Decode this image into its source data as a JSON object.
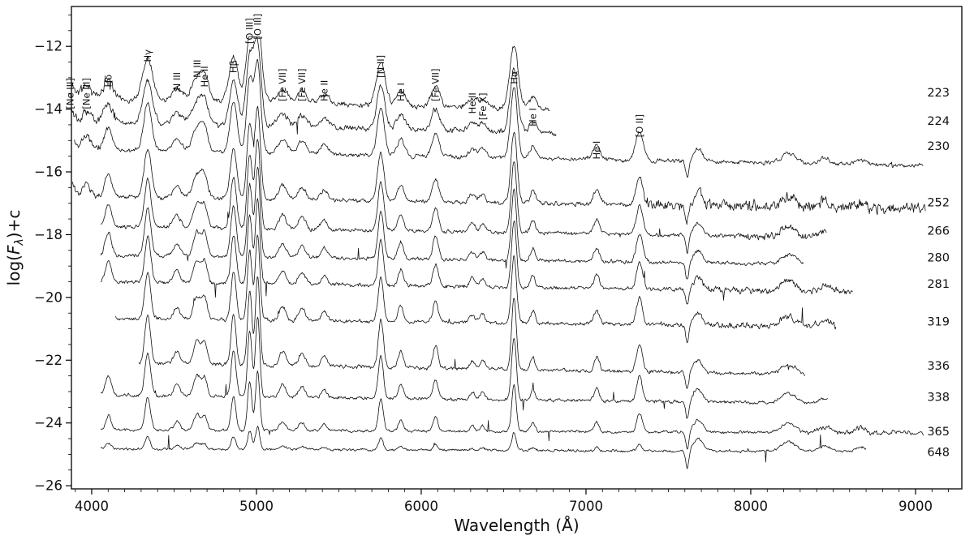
{
  "chart_data": {
    "type": "line",
    "title": "",
    "xlabel": "Wavelength (Å)",
    "ylabel": "log(Fλ)+c",
    "ylabel_parts": {
      "prefix": "log(",
      "f": "F",
      "sub": "λ",
      "suffix": ")+c"
    },
    "xlim": [
      3877,
      9281
    ],
    "ylim": [
      -26.1,
      -10.73
    ],
    "xticks": [
      4000,
      5000,
      6000,
      7000,
      8000,
      9000
    ],
    "yticks": [
      -26,
      -24,
      -22,
      -20,
      -18,
      -16,
      -14,
      -12
    ],
    "grid": false,
    "line_color": "#111111",
    "spectra": [
      {
        "label": "223",
        "offset": -13.85,
        "label_y": -13.6,
        "xstart": 3880,
        "xend": 6780,
        "line_scale": 0.8,
        "width_scale": 1.7,
        "noise": 0.1,
        "slope": -0.12,
        "seed": 11,
        "blue_noise_below": 4150,
        "blue_noise_mult": 1.8
      },
      {
        "label": "224",
        "offset": -14.6,
        "label_y": -14.5,
        "xstart": 3880,
        "xend": 6820,
        "line_scale": 0.8,
        "width_scale": 1.55,
        "noise": 0.1,
        "slope": -0.12,
        "seed": 22,
        "blue_noise_below": 4150,
        "blue_noise_mult": 1.8
      },
      {
        "label": "230",
        "offset": -15.45,
        "label_y": -15.3,
        "xstart": 3895,
        "xend": 9050,
        "line_scale": 0.9,
        "width_scale": 1.35,
        "noise": 0.075,
        "slope": -0.1,
        "seed": 33,
        "blue_noise_below": 4100,
        "blue_noise_mult": 1.6
      },
      {
        "label": "252",
        "offset": -16.9,
        "label_y": -17.1,
        "xstart": 3880,
        "xend": 9060,
        "line_scale": 0.9,
        "width_scale": 1.2,
        "noise": 0.08,
        "slope": -0.08,
        "seed": 44,
        "blue_noise_below": 4100,
        "blue_noise_mult": 1.6,
        "red_noise_from": 7350,
        "red_noise_mult": 2.6
      },
      {
        "label": "266",
        "offset": -17.85,
        "label_y": -18.0,
        "xstart": 4055,
        "xend": 8460,
        "line_scale": 0.9,
        "width_scale": 1.1,
        "noise": 0.07,
        "slope": -0.08,
        "seed": 55,
        "red_noise_from": 7900,
        "red_noise_mult": 1.8
      },
      {
        "label": "280",
        "offset": -18.75,
        "label_y": -18.85,
        "xstart": 4055,
        "xend": 8320,
        "line_scale": 0.9,
        "width_scale": 1.05,
        "noise": 0.065,
        "slope": -0.07,
        "seed": 66
      },
      {
        "label": "281",
        "offset": -19.6,
        "label_y": -19.7,
        "xstart": 4055,
        "xend": 8620,
        "line_scale": 0.85,
        "width_scale": 1.0,
        "noise": 0.07,
        "slope": -0.07,
        "seed": 77,
        "red_noise_from": 7650,
        "red_noise_mult": 1.7
      },
      {
        "label": "319",
        "offset": -20.75,
        "label_y": -20.9,
        "xstart": 4145,
        "xend": 8520,
        "line_scale": 0.85,
        "width_scale": 1.0,
        "noise": 0.07,
        "slope": -0.06,
        "seed": 88,
        "red_noise_from": 7700,
        "red_noise_mult": 1.6
      },
      {
        "label": "336",
        "offset": -22.2,
        "label_y": -22.3,
        "xstart": 4285,
        "xend": 8330,
        "line_scale": 0.9,
        "width_scale": 0.95,
        "noise": 0.07,
        "slope": -0.09,
        "seed": 99
      },
      {
        "label": "338",
        "offset": -23.2,
        "label_y": -23.3,
        "xstart": 4055,
        "xend": 8470,
        "line_scale": 0.8,
        "width_scale": 0.95,
        "noise": 0.06,
        "slope": -0.06,
        "seed": 111
      },
      {
        "label": "365",
        "offset": -24.25,
        "label_y": -24.4,
        "xstart": 4055,
        "xend": 9050,
        "line_scale": 0.6,
        "width_scale": 0.9,
        "noise": 0.05,
        "slope": -0.02,
        "seed": 122,
        "red_noise_from": 8300,
        "red_noise_mult": 1.8
      },
      {
        "label": "648",
        "offset": -24.85,
        "label_y": -25.05,
        "xstart": 4055,
        "xend": 8700,
        "line_scale": 0.22,
        "width_scale": 0.9,
        "noise": 0.045,
        "slope": -0.02,
        "seed": 133
      }
    ],
    "emission_lines": [
      {
        "label": "[Ne III]",
        "wavelength": 3869,
        "amp": 0.55,
        "sigma": 18,
        "label_y": -14.0
      },
      {
        "label": "[Ne III]",
        "wavelength": 3967,
        "amp": 0.5,
        "sigma": 18,
        "label_y": -14.0
      },
      {
        "label": "Hδ",
        "wavelength": 4101,
        "amp": 0.8,
        "sigma": 18,
        "label_y": -13.3
      },
      {
        "label": "Hγ",
        "wavelength": 4340,
        "amp": 1.7,
        "sigma": 18,
        "label_y": -12.5
      },
      {
        "label": "N III",
        "wavelength": 4517,
        "amp": 0.45,
        "sigma": 20,
        "label_y": -13.4
      },
      {
        "label": "N III",
        "wavelength": 4640,
        "amp": 0.85,
        "sigma": 22,
        "label_y": -13.0
      },
      {
        "label": "He II",
        "wavelength": 4686,
        "amp": 0.75,
        "sigma": 16,
        "label_y": -13.3
      },
      {
        "label": "Hβ",
        "wavelength": 4861,
        "amp": 1.8,
        "sigma": 16,
        "label_y": -12.85
      },
      {
        "label": "[O III]",
        "wavelength": 4959,
        "amp": 2.6,
        "sigma": 14,
        "label_y": -11.92
      },
      {
        "label": "[O III]",
        "wavelength": 5007,
        "amp": 3.2,
        "sigma": 14,
        "label_y": -11.78
      },
      {
        "label": "[Fe VII]",
        "wavelength": 5159,
        "amp": 0.5,
        "sigma": 20,
        "label_y": -13.75
      },
      {
        "label": "[Fe VII]",
        "wavelength": 5276,
        "amp": 0.45,
        "sigma": 20,
        "label_y": -13.75
      },
      {
        "label": "He II",
        "wavelength": 5412,
        "amp": 0.35,
        "sigma": 18,
        "label_y": -13.75
      },
      {
        "label": "[N II]",
        "wavelength": 5755,
        "amp": 1.7,
        "sigma": 16,
        "label_y": -13.0
      },
      {
        "label": "He I",
        "wavelength": 5876,
        "amp": 0.6,
        "sigma": 16,
        "label_y": -13.75
      },
      {
        "label": "[Fe VII]",
        "wavelength": 6087,
        "amp": 0.8,
        "sigma": 16,
        "label_y": -13.75
      },
      {
        "label": "He II",
        "wavelength": 6310,
        "amp": 0.3,
        "sigma": 16,
        "label_y": -14.15
      },
      {
        "label": "[Fe X]",
        "wavelength": 6374,
        "amp": 0.28,
        "sigma": 16,
        "label_y": -14.35
      },
      {
        "label": "Hα",
        "wavelength": 6563,
        "amp": 2.5,
        "sigma": 15,
        "label_y": -13.2
      },
      {
        "label": "He I",
        "wavelength": 6678,
        "amp": 0.45,
        "sigma": 14,
        "label_y": -14.55
      },
      {
        "label": "He I",
        "wavelength": 7065,
        "amp": 0.5,
        "sigma": 16,
        "label_y": -15.6
      },
      {
        "label": "[O II]",
        "wavelength": 7325,
        "amp": 1.0,
        "sigma": 18,
        "label_y": -14.9
      }
    ],
    "extra_features": [
      {
        "wavelength": 7615,
        "amp": -0.55,
        "sigma": 10
      },
      {
        "wavelength": 7680,
        "amp": 0.4,
        "sigma": 28
      },
      {
        "wavelength": 8230,
        "amp": 0.3,
        "sigma": 45
      },
      {
        "wavelength": 8450,
        "amp": 0.18,
        "sigma": 35
      },
      {
        "wavelength": 8665,
        "amp": 0.15,
        "sigma": 30
      }
    ]
  }
}
